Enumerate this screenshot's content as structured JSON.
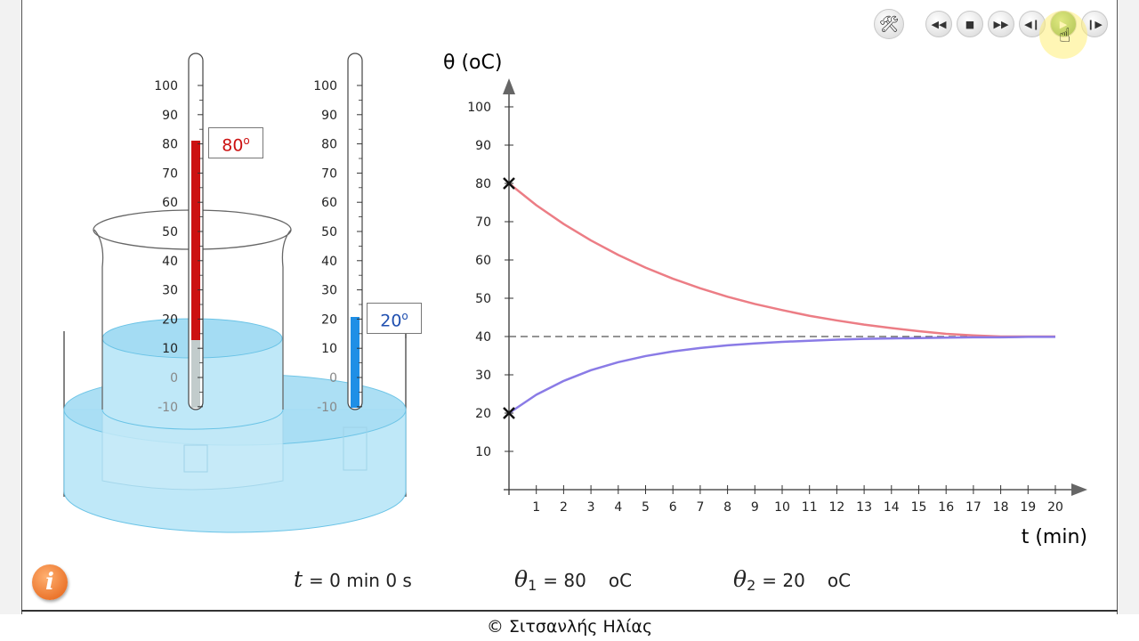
{
  "controls": {
    "tools_icon": "tools-icon",
    "buttons": [
      "rewind-icon",
      "stop-icon",
      "fast-forward-icon",
      "step-back-icon",
      "play-icon",
      "step-forward-icon"
    ]
  },
  "thermometer_1": {
    "label_value": "80",
    "label_unit": "o",
    "reading": 80,
    "color": "#cc1111",
    "ticks": [
      "100",
      "90",
      "80",
      "70",
      "60",
      "50",
      "40",
      "30",
      "20",
      "10",
      "0",
      "-10"
    ]
  },
  "thermometer_2": {
    "label_value": "20",
    "label_unit": "o",
    "reading": 20,
    "color": "#1f7fd6",
    "ticks": [
      "100",
      "90",
      "80",
      "70",
      "60",
      "50",
      "40",
      "30",
      "20",
      "10",
      "0",
      "-10"
    ]
  },
  "chart_data": {
    "type": "line",
    "title": "",
    "ylabel": "θ (oC)",
    "xlabel": "t (min)",
    "xlim": [
      0,
      20
    ],
    "ylim": [
      0,
      100
    ],
    "x_ticks": [
      "1",
      "2",
      "3",
      "4",
      "5",
      "6",
      "7",
      "8",
      "9",
      "10",
      "11",
      "12",
      "13",
      "14",
      "15",
      "16",
      "17",
      "18",
      "19",
      "20"
    ],
    "y_ticks": [
      "10",
      "20",
      "30",
      "40",
      "50",
      "60",
      "70",
      "80",
      "90",
      "100"
    ],
    "equilibrium_line": 40,
    "start_markers": [
      {
        "x": 0,
        "y": 80
      },
      {
        "x": 0,
        "y": 20
      }
    ],
    "series": [
      {
        "color": "#ec7d85",
        "x": [
          0,
          1,
          2,
          3,
          4,
          5,
          6,
          7,
          8,
          9,
          10,
          11,
          12,
          13,
          14,
          15,
          16,
          17,
          18,
          19,
          20
        ],
        "y": [
          80,
          74.3,
          69.4,
          65.1,
          61.3,
          58.0,
          55.1,
          52.6,
          50.4,
          48.5,
          46.9,
          45.4,
          44.2,
          43.1,
          42.2,
          41.4,
          40.7,
          40.3,
          40.0,
          40.0,
          40.0
        ]
      },
      {
        "color": "#8a7be6",
        "x": [
          0,
          1,
          2,
          3,
          4,
          5,
          6,
          7,
          8,
          9,
          10,
          11,
          12,
          13,
          14,
          15,
          16,
          17,
          18,
          19,
          20
        ],
        "y": [
          20,
          24.8,
          28.4,
          31.2,
          33.3,
          34.9,
          36.1,
          37.0,
          37.7,
          38.2,
          38.6,
          38.9,
          39.2,
          39.4,
          39.5,
          39.6,
          39.7,
          39.8,
          39.8,
          39.9,
          39.9
        ]
      }
    ]
  },
  "readouts": {
    "t_symbol": "t",
    "t_text": "= 0 min  0 s",
    "theta1_symbol": "θ",
    "theta1_sub": "1",
    "theta1_text": "= 80",
    "theta1_unit": "oC",
    "theta2_symbol": "θ",
    "theta2_sub": "2",
    "theta2_text": "= 20",
    "theta2_unit": "oC"
  },
  "footer": "© Σιτσανλής Ηλίας"
}
